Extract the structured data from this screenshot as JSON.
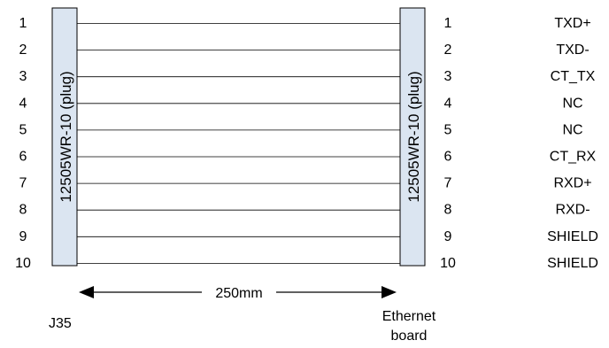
{
  "left_pins": [
    "1",
    "2",
    "3",
    "4",
    "5",
    "6",
    "7",
    "8",
    "9",
    "10"
  ],
  "right_pins": [
    "1",
    "2",
    "3",
    "4",
    "5",
    "6",
    "7",
    "8",
    "9",
    "10"
  ],
  "signals": [
    "TXD+",
    "TXD-",
    "CT_TX",
    "NC",
    "NC",
    "CT_RX",
    "RXD+",
    "RXD-",
    "SHIELD",
    "SHIELD"
  ],
  "left_connector": {
    "label": "12505WR-10 (plug)",
    "designator": "J35"
  },
  "right_connector": {
    "label": "12505WR-10 (plug)",
    "designator_line1": "Ethernet",
    "designator_line2": "board"
  },
  "cable_length": "250mm",
  "colors": {
    "connector_fill": "#dbe5f1",
    "stroke": "#000000"
  }
}
